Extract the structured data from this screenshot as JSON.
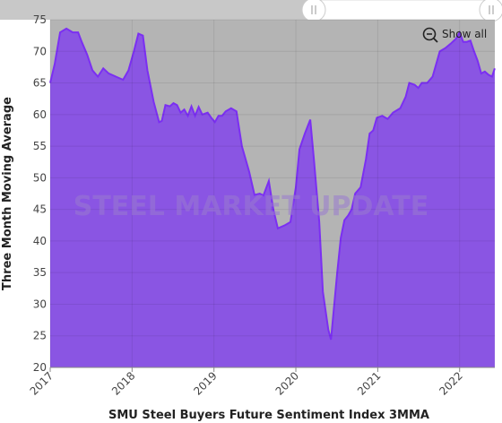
{
  "chart_data": {
    "type": "area",
    "title": "SMU Steel Buyers Future Sentiment Index 3MMA",
    "y_label": "Three Month Moving Average",
    "watermark": "STEEL MARKET UPDATE",
    "button": "Show all",
    "color": "#7b2ff2",
    "fill": "#8a55e3",
    "background": "#b4b4b4",
    "grid": true,
    "x": [
      2017.0,
      2017.055,
      2017.121,
      2017.198,
      2017.275,
      2017.341,
      2017.385,
      2017.451,
      2017.516,
      2017.582,
      2017.648,
      2017.714,
      2017.802,
      2017.89,
      2017.956,
      2018.022,
      2018.077,
      2018.132,
      2018.187,
      2018.264,
      2018.33,
      2018.363,
      2018.407,
      2018.462,
      2018.505,
      2018.549,
      2018.593,
      2018.637,
      2018.681,
      2018.725,
      2018.769,
      2018.813,
      2018.857,
      2018.923,
      2018.967,
      2019.011,
      2019.055,
      2019.099,
      2019.143,
      2019.209,
      2019.275,
      2019.341,
      2019.429,
      2019.495,
      2019.56,
      2019.604,
      2019.67,
      2019.725,
      2019.78,
      2019.868,
      2019.934,
      2020.0,
      2020.044,
      2020.11,
      2020.176,
      2020.22,
      2020.286,
      2020.33,
      2020.396,
      2020.429,
      2020.462,
      2020.505,
      2020.549,
      2020.593,
      2020.637,
      2020.681,
      2020.725,
      2020.791,
      2020.857,
      2020.901,
      2020.945,
      2020.989,
      2021.055,
      2021.121,
      2021.187,
      2021.275,
      2021.341,
      2021.385,
      2021.451,
      2021.495,
      2021.538,
      2021.604,
      2021.67,
      2021.714,
      2021.758,
      2021.824,
      2021.89,
      2021.956,
      2022.0,
      2022.044,
      2022.088,
      2022.132,
      2022.176,
      2022.22,
      2022.264,
      2022.308,
      2022.352,
      2022.396,
      2022.429
    ],
    "values": [
      65,
      68,
      73,
      73.6,
      73,
      73,
      71.5,
      69.5,
      67,
      66,
      67.3,
      66.5,
      66,
      65.5,
      67,
      70,
      72.8,
      72.5,
      67,
      62,
      58.8,
      59,
      61.5,
      61.3,
      61.8,
      61.5,
      60.3,
      60.8,
      59.8,
      61.3,
      59.8,
      61.2,
      60,
      60.3,
      59.5,
      58.8,
      59.8,
      59.8,
      60.5,
      61,
      60.5,
      55,
      51,
      47.3,
      47.5,
      47.2,
      49.5,
      45,
      42,
      42.5,
      43,
      48.5,
      54.5,
      57,
      59.2,
      53,
      43,
      32,
      26,
      24.4,
      29,
      35,
      40.5,
      43.3,
      44,
      45,
      47.5,
      48.5,
      53,
      57,
      57.5,
      59.5,
      59.8,
      59.3,
      60.3,
      61,
      62.8,
      65,
      64.7,
      64.2,
      65,
      65,
      66,
      68,
      70,
      70.5,
      71.2,
      72,
      73,
      71.5,
      71.5,
      71.7,
      70,
      68.5,
      66.5,
      66.8,
      66.3,
      66,
      67.3
    ],
    "xlim": [
      2017,
      2022.43
    ],
    "xticks": [
      2017,
      2018,
      2019,
      2020,
      2021,
      2022
    ],
    "ylim": [
      20,
      75
    ],
    "yticks": [
      20,
      25,
      30,
      35,
      40,
      45,
      50,
      55,
      60,
      65,
      70,
      75
    ]
  }
}
